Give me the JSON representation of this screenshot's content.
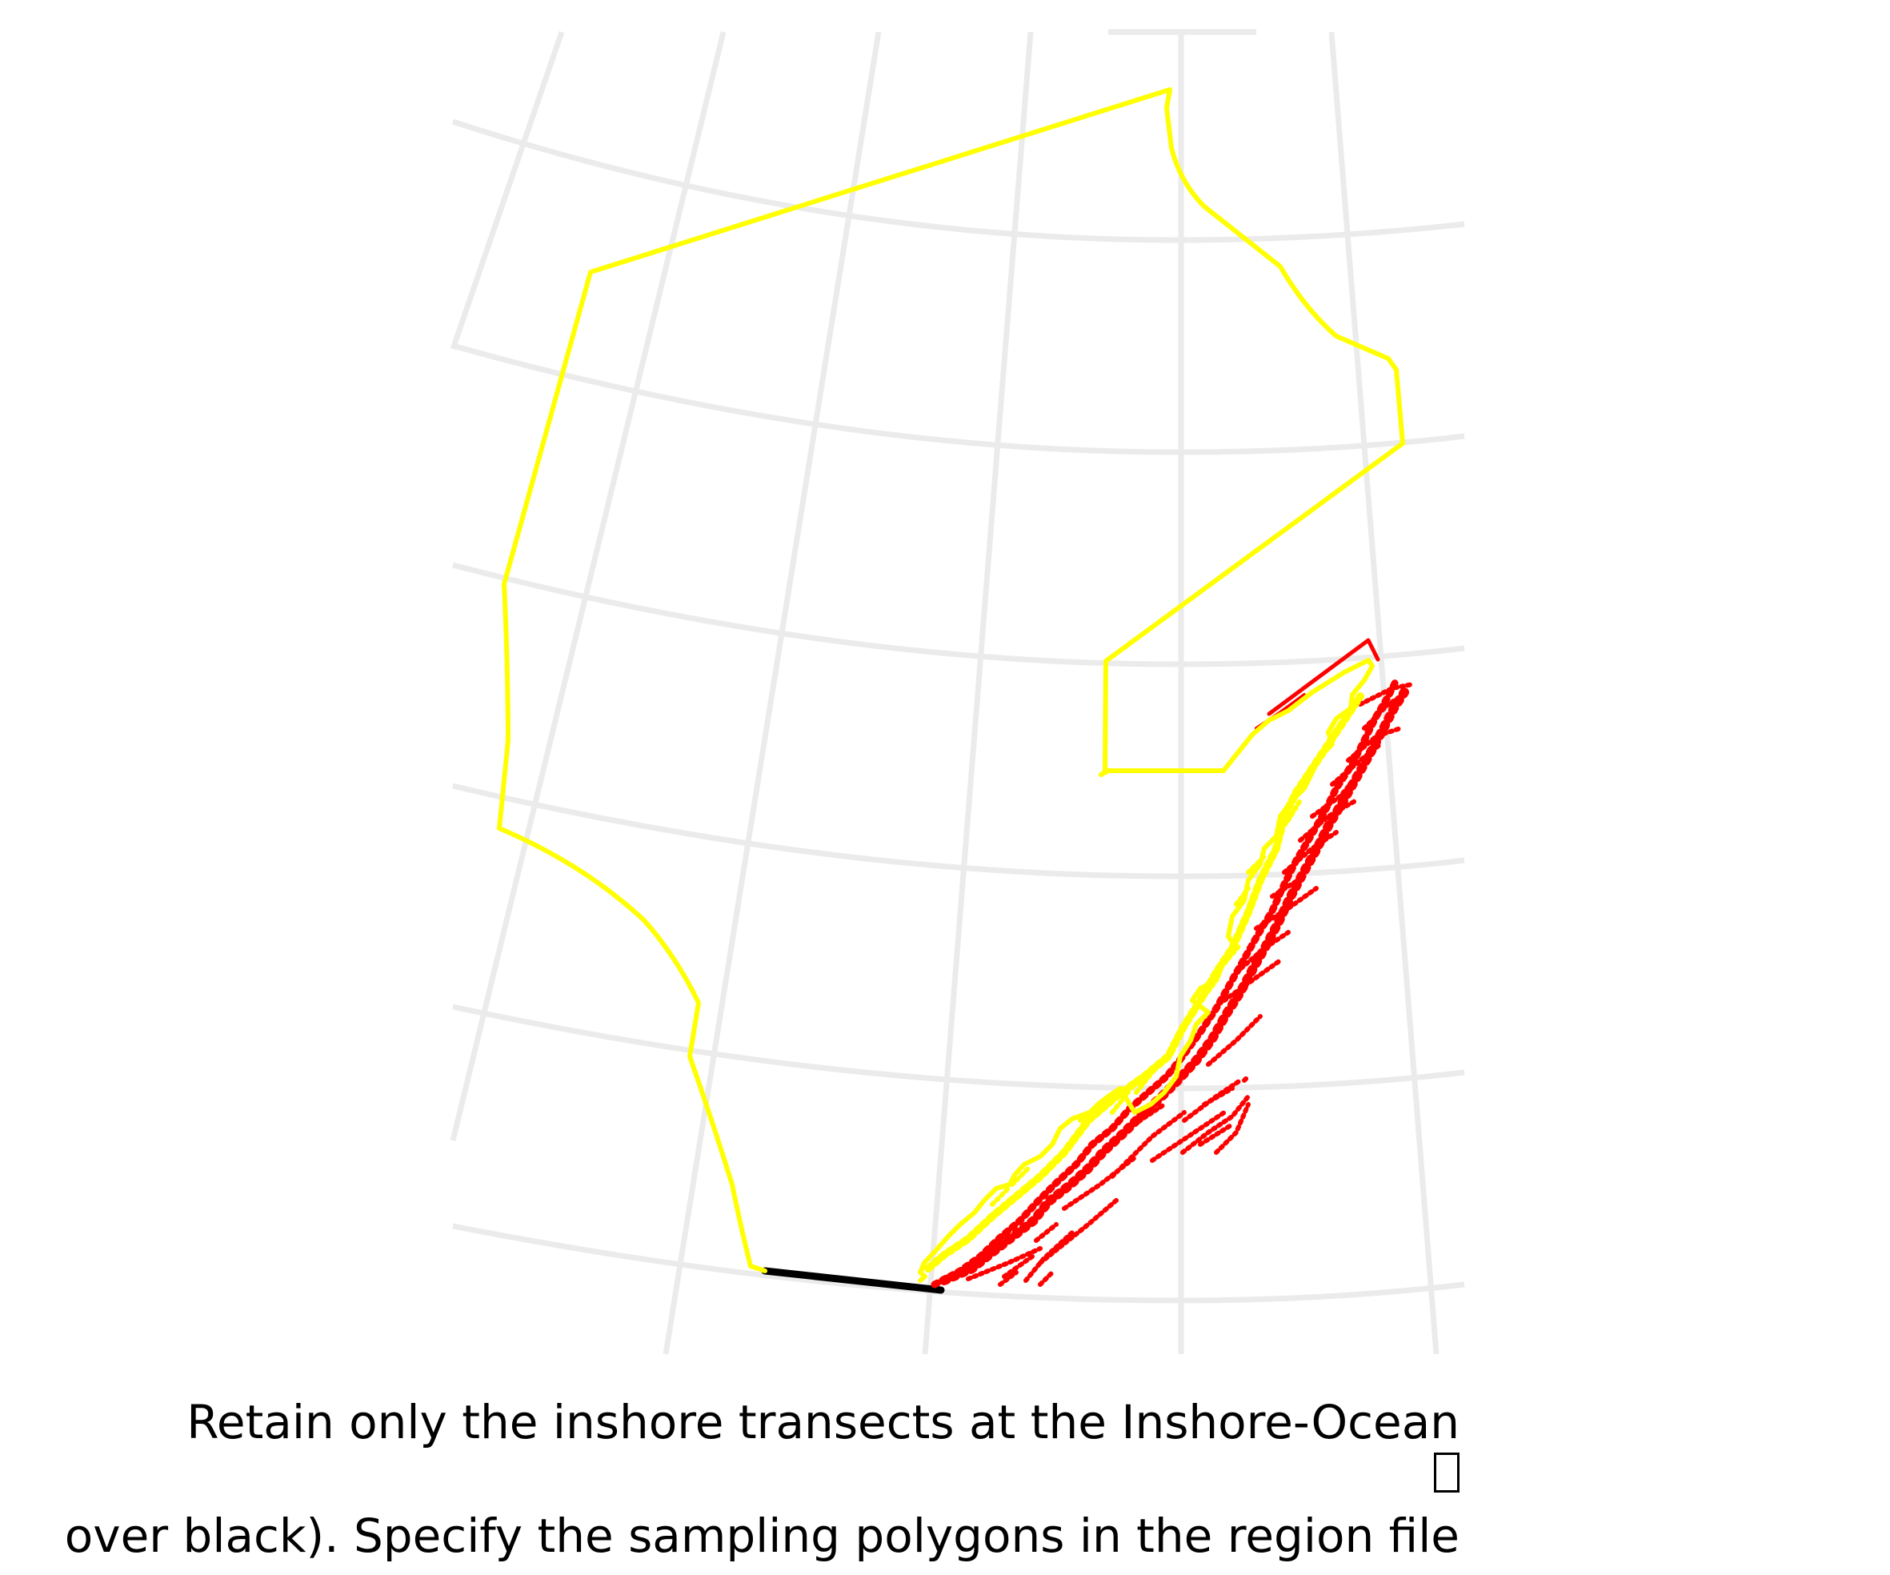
{
  "caption": {
    "line1": "Retain only the inshore transects at the Inshore-Ocean",
    "line2": "over black). Specify the sampling polygons in the region file"
  },
  "legend_colors": {
    "sampling_polygon": "#ffff00",
    "inshore_transects": "#ff0000",
    "boundary_line": "#000000"
  },
  "icons": {
    "caption_glyph": "missing-glyph-box"
  }
}
